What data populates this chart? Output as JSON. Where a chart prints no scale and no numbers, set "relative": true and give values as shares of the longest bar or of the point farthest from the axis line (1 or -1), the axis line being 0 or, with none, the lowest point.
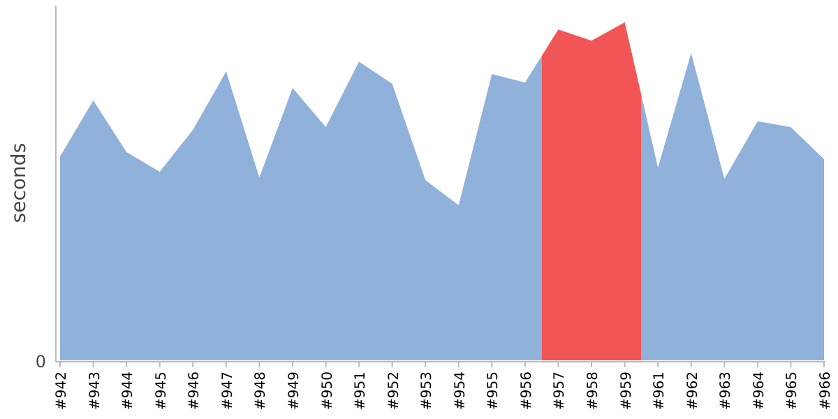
{
  "chart_data": {
    "type": "area",
    "relative": true,
    "ylabel": "seconds",
    "annotations": [
      "0"
    ],
    "categories": [
      "#942",
      "#943",
      "#944",
      "#945",
      "#946",
      "#947",
      "#948",
      "#949",
      "#950",
      "#951",
      "#952",
      "#953",
      "#954",
      "#955",
      "#956",
      "#957",
      "#958",
      "#959",
      "#961",
      "#962",
      "#963",
      "#964",
      "#965",
      "#966"
    ],
    "series": [
      {
        "values": [
          0.603,
          0.769,
          0.616,
          0.558,
          0.682,
          0.855,
          0.541,
          0.806,
          0.69,
          0.884,
          0.818,
          0.533,
          0.459,
          0.847,
          0.822,
          0.979,
          0.946,
          1,
          0.57,
          0.909,
          0.537,
          0.707,
          0.69,
          0.595
        ],
        "colors": [
          "#8fb1da",
          "#8fb1da",
          "#8fb1da",
          "#8fb1da",
          "#8fb1da",
          "#8fb1da",
          "#8fb1da",
          "#8fb1da",
          "#8fb1da",
          "#8fb1da",
          "#8fb1da",
          "#8fb1da",
          "#8fb1da",
          "#8fb1da",
          "#8fb1da",
          "#f25555",
          "#f25555",
          "#f25555",
          "#8fb1da",
          "#8fb1da",
          "#8fb1da",
          "#8fb1da",
          "#8fb1da",
          "#8fb1da"
        ]
      }
    ]
  }
}
